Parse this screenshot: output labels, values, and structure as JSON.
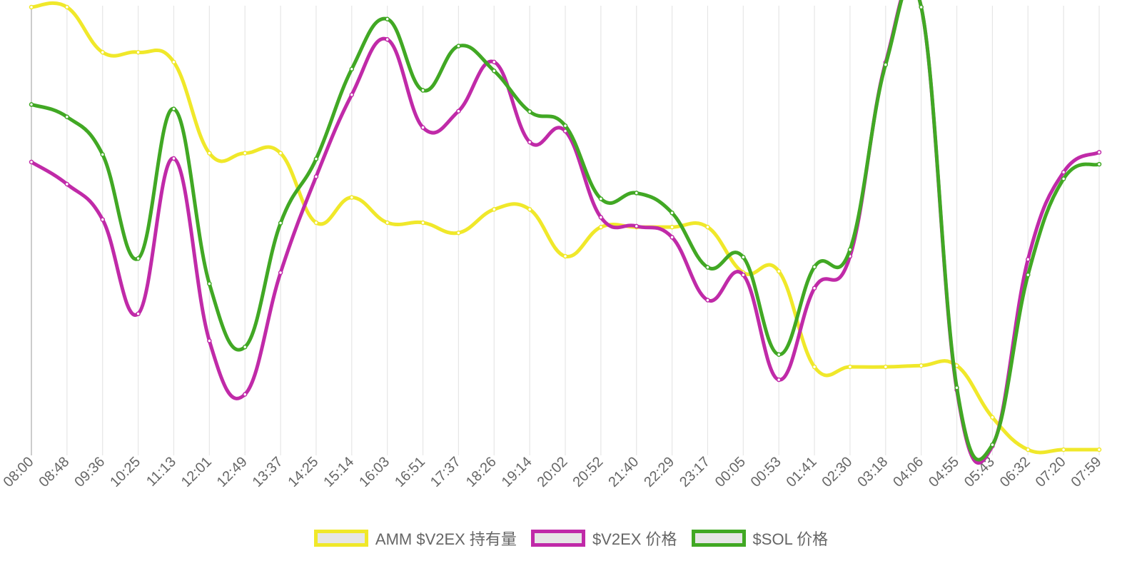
{
  "chart_data": {
    "type": "line",
    "categories": [
      "08:00",
      "08:48",
      "09:36",
      "10:25",
      "11:13",
      "12:01",
      "12:49",
      "13:37",
      "14:25",
      "15:14",
      "16:03",
      "16:51",
      "17:37",
      "18:26",
      "19:14",
      "20:02",
      "20:52",
      "21:40",
      "22:29",
      "23:17",
      "00:05",
      "00:53",
      "01:41",
      "02:30",
      "03:18",
      "04:06",
      "04:55",
      "05:43",
      "06:32",
      "07:20",
      "07:59"
    ],
    "y_scale": "independent per series",
    "grid": {
      "vertical": true,
      "horizontal": false
    },
    "legend_position": "bottom",
    "series": [
      {
        "name": "AMM $V2EX 持有量",
        "color": "#f0e82a",
        "values": [
          1.0,
          1.0,
          0.898,
          0.898,
          0.876,
          0.67,
          0.67,
          0.67,
          0.513,
          0.57,
          0.513,
          0.513,
          0.49,
          0.543,
          0.543,
          0.437,
          0.503,
          0.503,
          0.503,
          0.503,
          0.4,
          0.403,
          0.187,
          0.187,
          0.187,
          0.19,
          0.19,
          0.073,
          0.0,
          0.0,
          0.0
        ]
      },
      {
        "name": "$V2EX 价格",
        "color": "#c02aa8",
        "values": [
          0.65,
          0.6,
          0.52,
          0.307,
          0.658,
          0.246,
          0.125,
          0.4,
          0.617,
          0.802,
          0.927,
          0.728,
          0.765,
          0.876,
          0.695,
          0.72,
          0.525,
          0.505,
          0.48,
          0.338,
          0.395,
          0.158,
          0.365,
          0.437,
          0.875,
          1.0,
          0.135,
          0.008,
          0.43,
          0.627,
          0.672
        ]
      },
      {
        "name": "$SOL 价格",
        "color": "#41a824",
        "values": [
          0.78,
          0.752,
          0.667,
          0.432,
          0.77,
          0.375,
          0.232,
          0.512,
          0.657,
          0.86,
          0.973,
          0.812,
          0.912,
          0.856,
          0.764,
          0.732,
          0.567,
          0.58,
          0.535,
          0.412,
          0.435,
          0.215,
          0.413,
          0.452,
          0.87,
          1.0,
          0.14,
          0.011,
          0.395,
          0.612,
          0.645
        ]
      }
    ]
  }
}
